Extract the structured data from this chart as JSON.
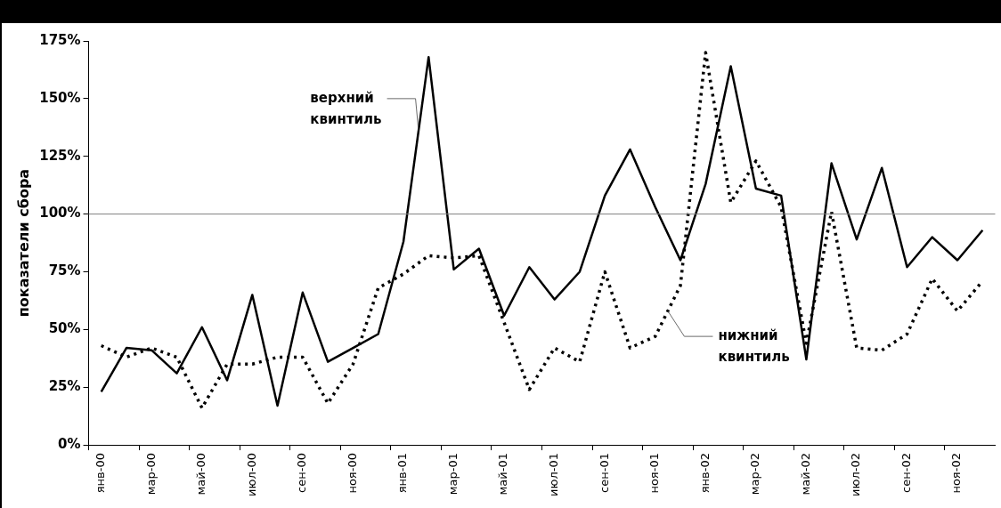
{
  "chart_data": {
    "type": "line",
    "ylabel": "показатели сбора",
    "categories": [
      "янв-00",
      null,
      "мар-00",
      null,
      "май-00",
      null,
      "июл-00",
      null,
      "сен-00",
      null,
      "ноя-00",
      null,
      "янв-01",
      null,
      "мар-01",
      null,
      "май-01",
      null,
      "июл-01",
      null,
      "сен-01",
      null,
      "ноя-01",
      null,
      "янв-02",
      null,
      "мар-02",
      null,
      "май-02",
      null,
      "июл-02",
      null,
      "сен-02",
      null,
      "ноя-02",
      null
    ],
    "series": [
      {
        "name": "верхний квинтиль",
        "color": "#000000",
        "line_style": "solid",
        "values": [
          23,
          42,
          41,
          31,
          51,
          28,
          65,
          17,
          66,
          36,
          42,
          48,
          88,
          168,
          76,
          85,
          56,
          77,
          63,
          75,
          108,
          128,
          103,
          80,
          113,
          164,
          111,
          108,
          37,
          122,
          89,
          120,
          77,
          90,
          80,
          93
        ]
      },
      {
        "name": "нижний квинтиль",
        "color": "#000000",
        "line_style": "dotted",
        "values": [
          43,
          38,
          42,
          38,
          16,
          35,
          35,
          38,
          38,
          18,
          35,
          68,
          74,
          82,
          81,
          82,
          53,
          24,
          42,
          36,
          75,
          42,
          47,
          69,
          170,
          105,
          123,
          103,
          44,
          101,
          42,
          41,
          48,
          72,
          58,
          71
        ]
      }
    ],
    "ylim": [
      0,
      175
    ],
    "yticks": [
      {
        "value": 0,
        "label": "0%"
      },
      {
        "value": 25,
        "label": "25%"
      },
      {
        "value": 50,
        "label": "50%"
      },
      {
        "value": 75,
        "label": "75%"
      },
      {
        "value": 100,
        "label": "100%"
      },
      {
        "value": 125,
        "label": "125%"
      },
      {
        "value": 150,
        "label": "150%"
      },
      {
        "value": 175,
        "label": "175%"
      }
    ],
    "ref_lines": [
      {
        "axis": "y",
        "value": 100,
        "color": "#808080"
      }
    ],
    "grid": false,
    "legend": false,
    "marker": "none"
  }
}
